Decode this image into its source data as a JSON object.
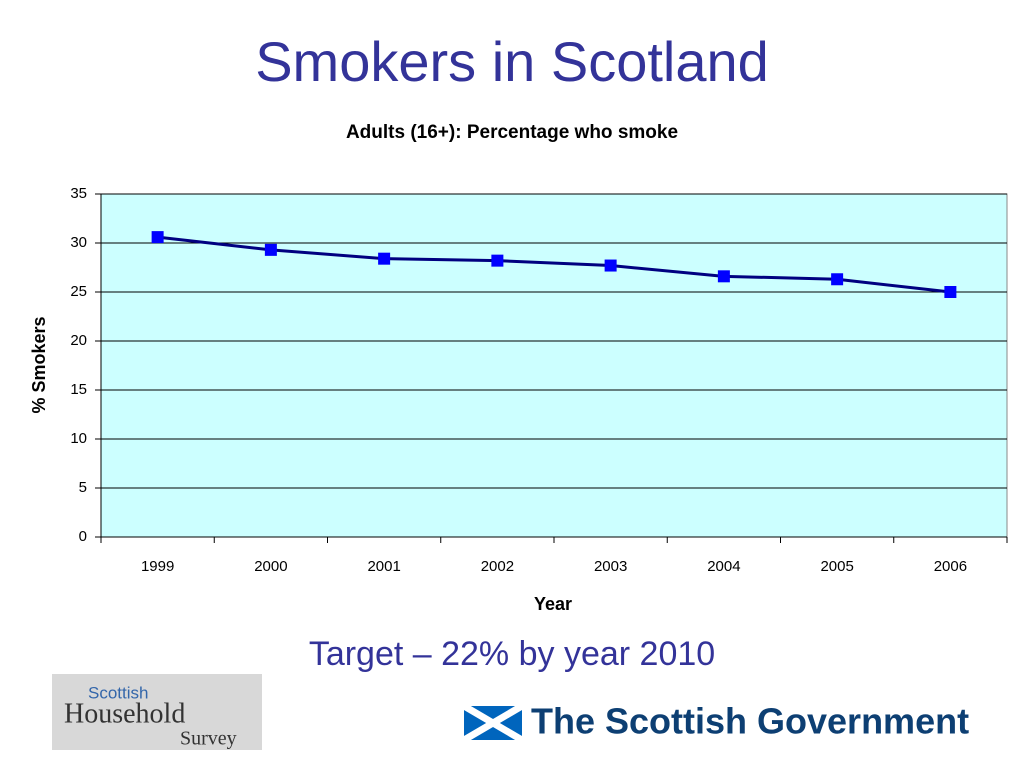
{
  "title": "Smokers in Scotland",
  "chart_data": {
    "type": "line",
    "title": "Adults (16+): Percentage who smoke",
    "x_label": "Year",
    "y_label": "% Smokers",
    "categories": [
      "1999",
      "2000",
      "2001",
      "2002",
      "2003",
      "2004",
      "2005",
      "2006"
    ],
    "values": [
      30.6,
      29.3,
      28.4,
      28.2,
      27.7,
      26.6,
      26.3,
      25.0
    ],
    "color": "#000080",
    "marker_color": "#0000ff",
    "background": "#ccffff",
    "ylim": [
      0,
      35
    ],
    "yticks": [
      0,
      5,
      10,
      15,
      20,
      25,
      30,
      35
    ],
    "grid": true
  },
  "footer": "Target – 22% by year 2010",
  "logos": {
    "survey": [
      "Scottish",
      "Household",
      "Survey"
    ],
    "government": "The Scottish Government"
  }
}
